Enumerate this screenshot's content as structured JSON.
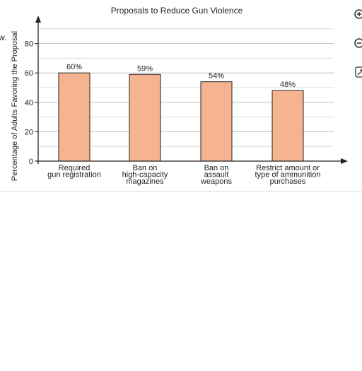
{
  "page": {
    "left_fragment": "w."
  },
  "controls": [
    {
      "name": "zoom-in-button",
      "icon": "zoom-in-icon"
    },
    {
      "name": "zoom-out-button",
      "icon": "zoom-out-icon"
    },
    {
      "name": "expand-button",
      "icon": "expand-icon"
    }
  ],
  "chart_data": {
    "type": "bar",
    "title": "Proposals to Reduce Gun Violence",
    "ylabel": "Percentage of Adults Favoring the Proposal",
    "xlabel": "",
    "ylim": [
      0,
      90
    ],
    "yticks": [
      0,
      20,
      40,
      60,
      80
    ],
    "minor_gridlines_every": 10,
    "grid": true,
    "legend": "none",
    "bar_color": "#f5b48f",
    "categories": [
      [
        "Required",
        "gun registration"
      ],
      [
        "Ban on",
        "high-capacity",
        "magazines"
      ],
      [
        "Ban on",
        "assault",
        "weapons"
      ],
      [
        "Restrict amount or",
        "type of ammunition",
        "purchases"
      ]
    ],
    "values": [
      60,
      59,
      54,
      48
    ],
    "data_labels": [
      "60%",
      "59%",
      "54%",
      "48%"
    ]
  }
}
